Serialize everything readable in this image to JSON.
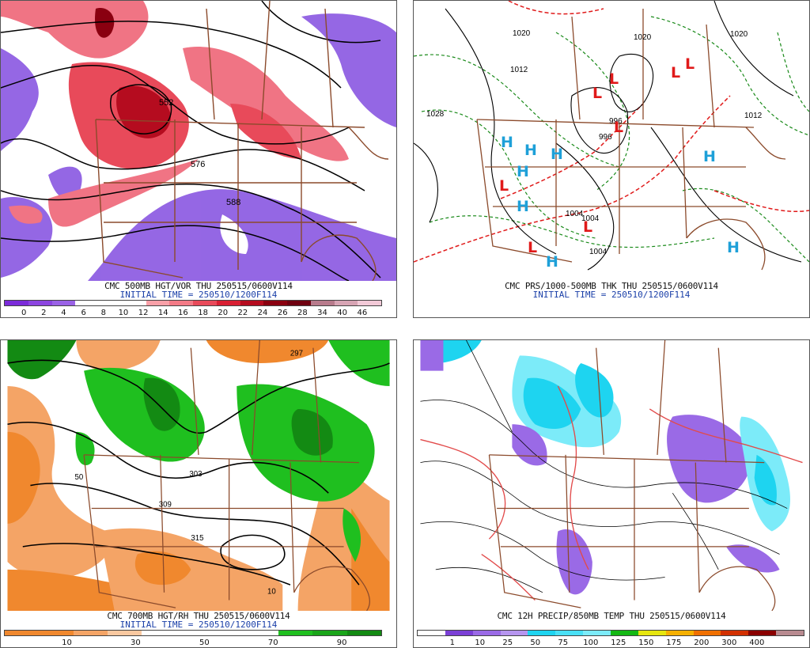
{
  "colors": {
    "borders": "#8b4a2b",
    "height_contour": "#000000",
    "thickness": "#e01a1a",
    "pressure_lines": "#1a8a1a",
    "high": "#1ea0d8",
    "low": "#e01a1a"
  },
  "panels": [
    {
      "id": "p1",
      "title": "CMC 500MB HGT/VOR THU 250515/0600V114",
      "init": "INITIAL TIME = 250510/1200F114",
      "colorbar": [
        "#7b2bd9",
        "#8c45e0",
        "#9a62e6",
        "#ffffff",
        "#ffffff",
        "#ffffff",
        "#f9a0a8",
        "#f37a86",
        "#e84a5a",
        "#d81f33",
        "#b50c1f",
        "#8a0010",
        "#6f0010",
        "#b87b8c",
        "#d7a4b4",
        "#f2c9d7"
      ],
      "ticks": [
        "0",
        "2",
        "4",
        "6",
        "8",
        "10",
        "12",
        "14",
        "16",
        "18",
        "20",
        "22",
        "24",
        "26",
        "28",
        "34",
        "40",
        "46"
      ],
      "labels": [
        "552",
        "576",
        "588"
      ]
    },
    {
      "id": "p2",
      "title": "CMC PRS/1000-500MB THK THU 250515/0600V114",
      "init": "INITIAL TIME = 250510/1200F114",
      "pressure_labels": [
        "1020",
        "1020",
        "1020",
        "1012",
        "1028",
        "1012",
        "1004",
        "1004",
        "996",
        "996",
        "1004"
      ],
      "highs": [
        "H",
        "H",
        "H",
        "H",
        "H",
        "H",
        "H",
        "H"
      ],
      "lows": [
        "L",
        "L",
        "L",
        "L",
        "L",
        "L",
        "L"
      ]
    },
    {
      "id": "p3",
      "title": "CMC 700MB HGT/RH THU 250515/0600V114",
      "init": "INITIAL TIME = 250510/1200F114",
      "colorbar": [
        "#f0882e",
        "#f0882e",
        "#f4a466",
        "#f9c8a0",
        "#ffffff",
        "#ffffff",
        "#ffffff",
        "#ffffff",
        "#1fbf1f",
        "#1aa51a",
        "#138a13"
      ],
      "ticks": [
        "10",
        "30",
        "50",
        "70",
        "90"
      ],
      "labels": [
        "297",
        "303",
        "309",
        "315",
        "50",
        "10"
      ]
    },
    {
      "id": "p4",
      "title": "CMC 12H PRECIP/850MB TEMP THU 250515/0600V114",
      "init": "",
      "colorbar": [
        "#ffffff",
        "#7b3fd6",
        "#9a6ae6",
        "#b695ef",
        "#1ed4f0",
        "#49e0f5",
        "#7cebf9",
        "#14b814",
        "#e6e60f",
        "#f5b000",
        "#f07000",
        "#d23000",
        "#8a0000",
        "#b88a90"
      ],
      "ticks": [
        "1",
        "10",
        "25",
        "50",
        "75",
        "100",
        "125",
        "150",
        "175",
        "200",
        "300",
        "400"
      ]
    }
  ]
}
